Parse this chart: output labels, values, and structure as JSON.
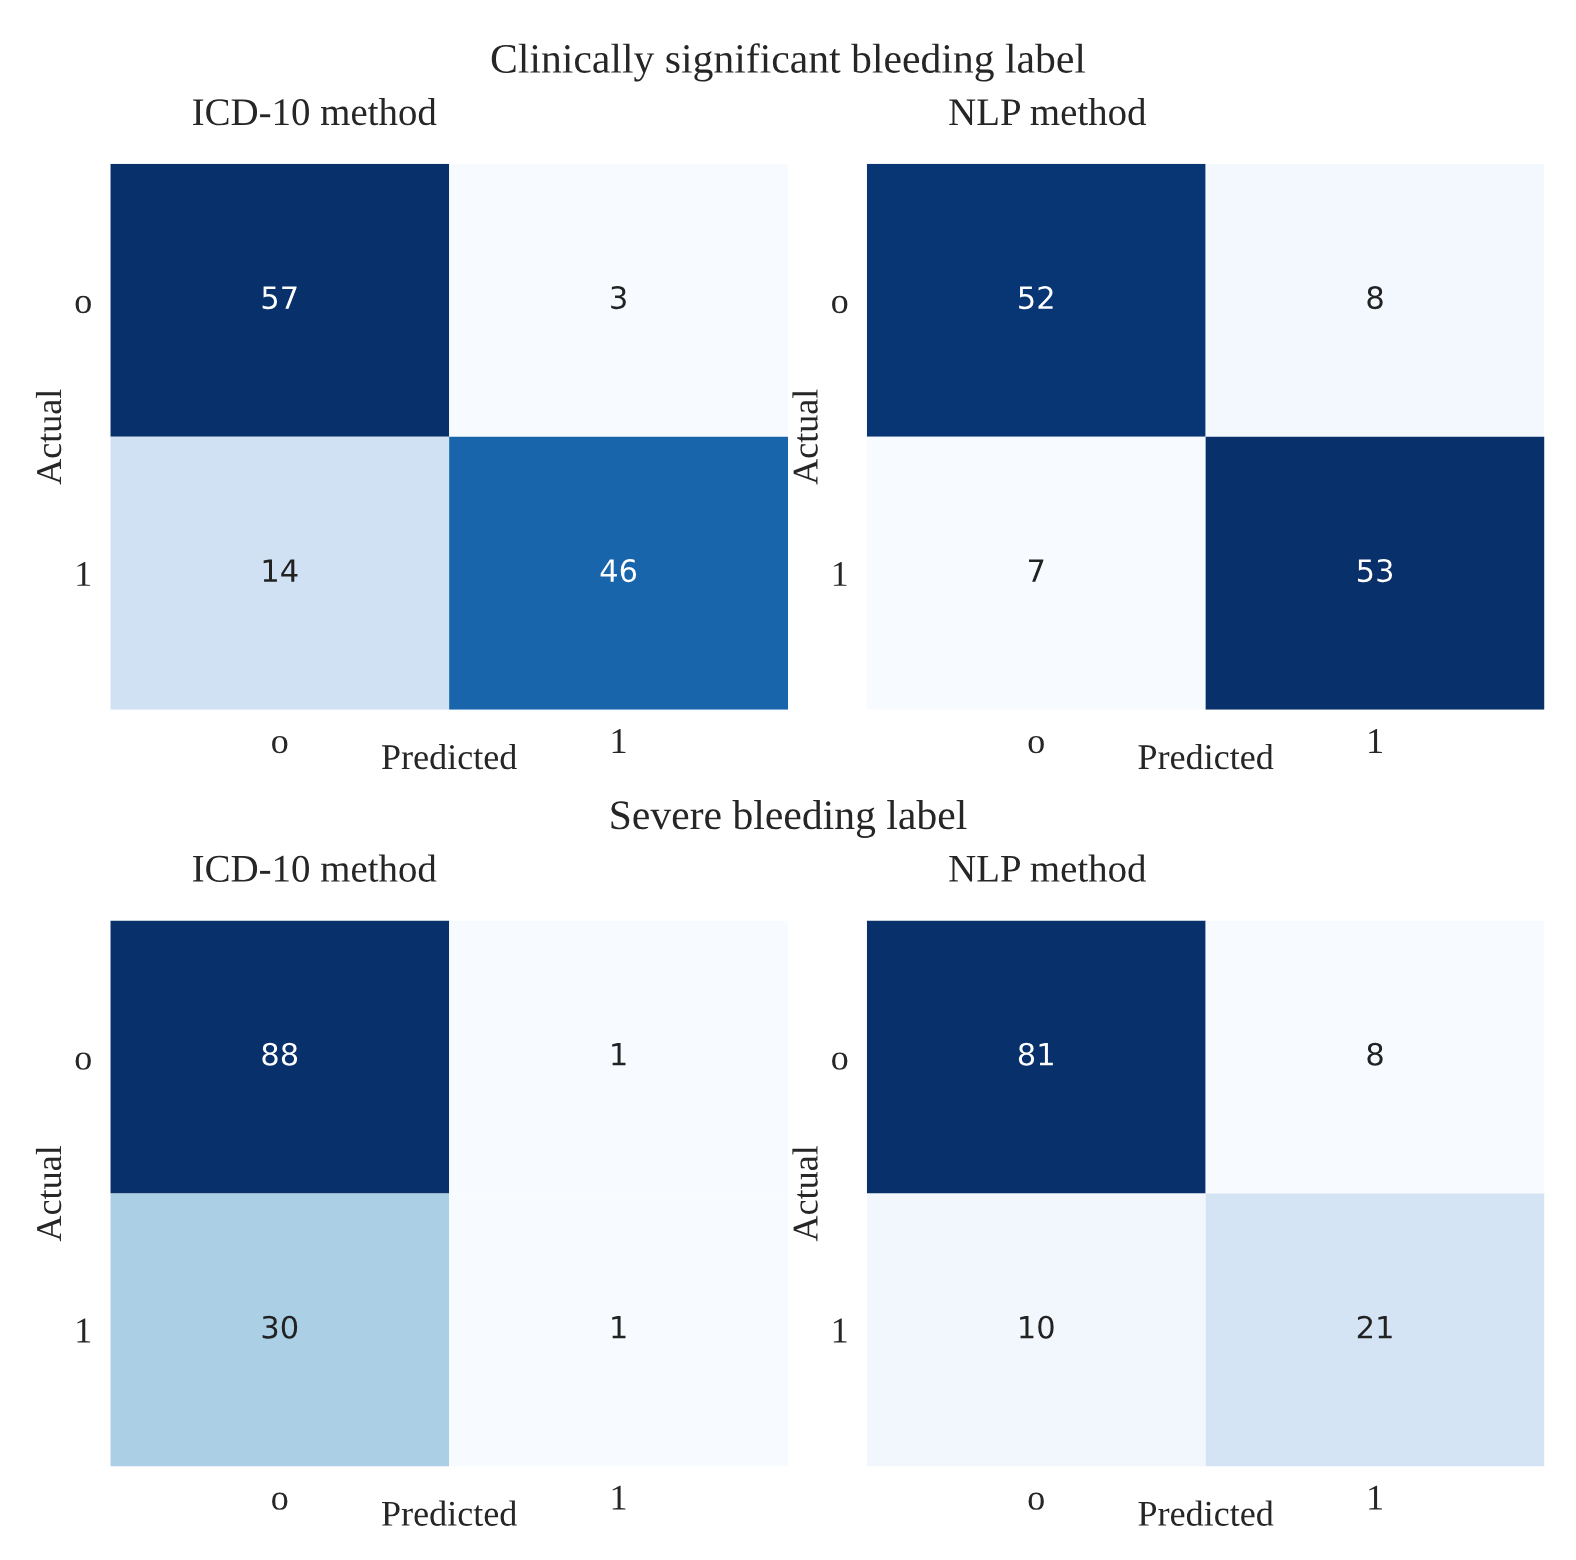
{
  "chart_data": [
    {
      "type": "heatmap",
      "title": "ICD-10 method",
      "annotations": [
        "Clinically significant bleeding label"
      ],
      "xlabel": "Predicted",
      "ylabel": "Actual",
      "categories": [
        "o",
        "1"
      ],
      "y_categories": [
        "o",
        "1"
      ],
      "cells": [
        [
          57,
          3
        ],
        [
          14,
          46
        ]
      ],
      "data_labels": true
    },
    {
      "type": "heatmap",
      "title": "NLP method",
      "xlabel": "Predicted",
      "ylabel": "Actual",
      "categories": [
        "o",
        "1"
      ],
      "y_categories": [
        "o",
        "1"
      ],
      "cells": [
        [
          52,
          8
        ],
        [
          7,
          53
        ]
      ],
      "data_labels": true
    },
    {
      "type": "heatmap",
      "title": "ICD-10 method",
      "annotations": [
        "Severe bleeding label"
      ],
      "xlabel": "Predicted",
      "ylabel": "Actual",
      "categories": [
        "o",
        "1"
      ],
      "y_categories": [
        "o",
        "1"
      ],
      "cells": [
        [
          88,
          1
        ],
        [
          30,
          1
        ]
      ],
      "data_labels": true
    },
    {
      "type": "heatmap",
      "title": "NLP method",
      "xlabel": "Predicted",
      "ylabel": "Actual",
      "categories": [
        "o",
        "1"
      ],
      "y_categories": [
        "o",
        "1"
      ],
      "cells": [
        [
          81,
          8
        ],
        [
          10,
          21
        ]
      ],
      "data_labels": true
    }
  ]
}
